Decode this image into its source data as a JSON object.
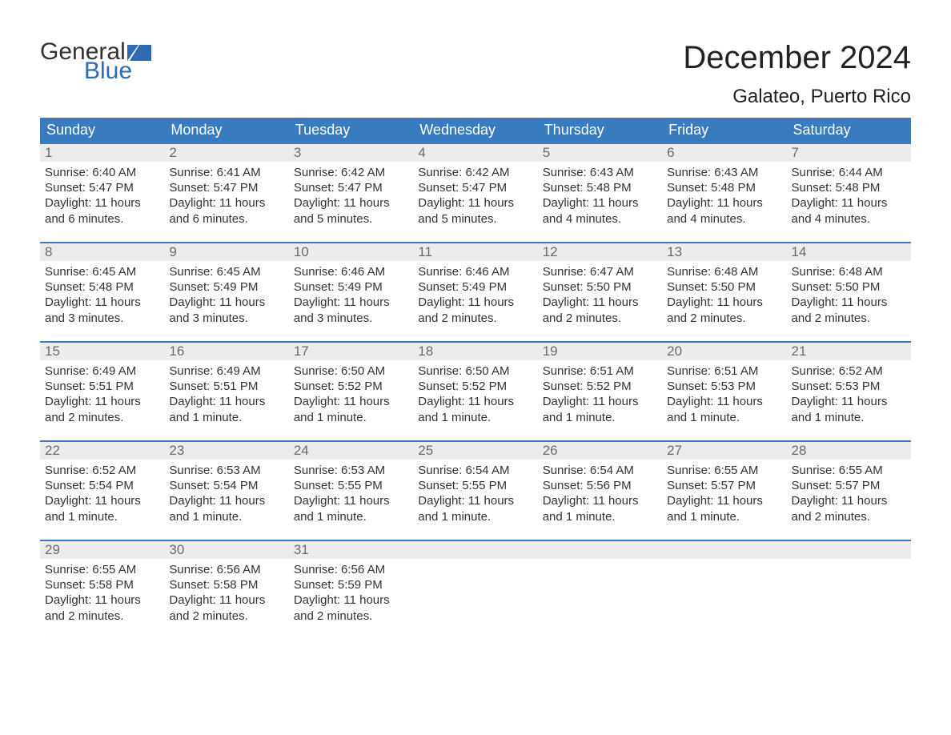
{
  "logo": {
    "word1": "General",
    "word2": "Blue",
    "flag_color": "#2f6bb1"
  },
  "title": "December 2024",
  "location": "Galateo, Puerto Rico",
  "colors": {
    "header_bg": "#387bbf",
    "header_text": "#ffffff",
    "daynum_bg": "#ececec",
    "daynum_text": "#6a6a6a",
    "body_text": "#333333",
    "row_border": "#387bbf",
    "page_bg": "#ffffff"
  },
  "typography": {
    "title_fontsize": 40,
    "location_fontsize": 24,
    "header_fontsize": 18,
    "daynum_fontsize": 17,
    "cell_fontsize": 15
  },
  "weekdays": [
    "Sunday",
    "Monday",
    "Tuesday",
    "Wednesday",
    "Thursday",
    "Friday",
    "Saturday"
  ],
  "weeks": [
    [
      {
        "num": "1",
        "sunrise": "Sunrise: 6:40 AM",
        "sunset": "Sunset: 5:47 PM",
        "daylight": "Daylight: 11 hours and 6 minutes."
      },
      {
        "num": "2",
        "sunrise": "Sunrise: 6:41 AM",
        "sunset": "Sunset: 5:47 PM",
        "daylight": "Daylight: 11 hours and 6 minutes."
      },
      {
        "num": "3",
        "sunrise": "Sunrise: 6:42 AM",
        "sunset": "Sunset: 5:47 PM",
        "daylight": "Daylight: 11 hours and 5 minutes."
      },
      {
        "num": "4",
        "sunrise": "Sunrise: 6:42 AM",
        "sunset": "Sunset: 5:47 PM",
        "daylight": "Daylight: 11 hours and 5 minutes."
      },
      {
        "num": "5",
        "sunrise": "Sunrise: 6:43 AM",
        "sunset": "Sunset: 5:48 PM",
        "daylight": "Daylight: 11 hours and 4 minutes."
      },
      {
        "num": "6",
        "sunrise": "Sunrise: 6:43 AM",
        "sunset": "Sunset: 5:48 PM",
        "daylight": "Daylight: 11 hours and 4 minutes."
      },
      {
        "num": "7",
        "sunrise": "Sunrise: 6:44 AM",
        "sunset": "Sunset: 5:48 PM",
        "daylight": "Daylight: 11 hours and 4 minutes."
      }
    ],
    [
      {
        "num": "8",
        "sunrise": "Sunrise: 6:45 AM",
        "sunset": "Sunset: 5:48 PM",
        "daylight": "Daylight: 11 hours and 3 minutes."
      },
      {
        "num": "9",
        "sunrise": "Sunrise: 6:45 AM",
        "sunset": "Sunset: 5:49 PM",
        "daylight": "Daylight: 11 hours and 3 minutes."
      },
      {
        "num": "10",
        "sunrise": "Sunrise: 6:46 AM",
        "sunset": "Sunset: 5:49 PM",
        "daylight": "Daylight: 11 hours and 3 minutes."
      },
      {
        "num": "11",
        "sunrise": "Sunrise: 6:46 AM",
        "sunset": "Sunset: 5:49 PM",
        "daylight": "Daylight: 11 hours and 2 minutes."
      },
      {
        "num": "12",
        "sunrise": "Sunrise: 6:47 AM",
        "sunset": "Sunset: 5:50 PM",
        "daylight": "Daylight: 11 hours and 2 minutes."
      },
      {
        "num": "13",
        "sunrise": "Sunrise: 6:48 AM",
        "sunset": "Sunset: 5:50 PM",
        "daylight": "Daylight: 11 hours and 2 minutes."
      },
      {
        "num": "14",
        "sunrise": "Sunrise: 6:48 AM",
        "sunset": "Sunset: 5:50 PM",
        "daylight": "Daylight: 11 hours and 2 minutes."
      }
    ],
    [
      {
        "num": "15",
        "sunrise": "Sunrise: 6:49 AM",
        "sunset": "Sunset: 5:51 PM",
        "daylight": "Daylight: 11 hours and 2 minutes."
      },
      {
        "num": "16",
        "sunrise": "Sunrise: 6:49 AM",
        "sunset": "Sunset: 5:51 PM",
        "daylight": "Daylight: 11 hours and 1 minute."
      },
      {
        "num": "17",
        "sunrise": "Sunrise: 6:50 AM",
        "sunset": "Sunset: 5:52 PM",
        "daylight": "Daylight: 11 hours and 1 minute."
      },
      {
        "num": "18",
        "sunrise": "Sunrise: 6:50 AM",
        "sunset": "Sunset: 5:52 PM",
        "daylight": "Daylight: 11 hours and 1 minute."
      },
      {
        "num": "19",
        "sunrise": "Sunrise: 6:51 AM",
        "sunset": "Sunset: 5:52 PM",
        "daylight": "Daylight: 11 hours and 1 minute."
      },
      {
        "num": "20",
        "sunrise": "Sunrise: 6:51 AM",
        "sunset": "Sunset: 5:53 PM",
        "daylight": "Daylight: 11 hours and 1 minute."
      },
      {
        "num": "21",
        "sunrise": "Sunrise: 6:52 AM",
        "sunset": "Sunset: 5:53 PM",
        "daylight": "Daylight: 11 hours and 1 minute."
      }
    ],
    [
      {
        "num": "22",
        "sunrise": "Sunrise: 6:52 AM",
        "sunset": "Sunset: 5:54 PM",
        "daylight": "Daylight: 11 hours and 1 minute."
      },
      {
        "num": "23",
        "sunrise": "Sunrise: 6:53 AM",
        "sunset": "Sunset: 5:54 PM",
        "daylight": "Daylight: 11 hours and 1 minute."
      },
      {
        "num": "24",
        "sunrise": "Sunrise: 6:53 AM",
        "sunset": "Sunset: 5:55 PM",
        "daylight": "Daylight: 11 hours and 1 minute."
      },
      {
        "num": "25",
        "sunrise": "Sunrise: 6:54 AM",
        "sunset": "Sunset: 5:55 PM",
        "daylight": "Daylight: 11 hours and 1 minute."
      },
      {
        "num": "26",
        "sunrise": "Sunrise: 6:54 AM",
        "sunset": "Sunset: 5:56 PM",
        "daylight": "Daylight: 11 hours and 1 minute."
      },
      {
        "num": "27",
        "sunrise": "Sunrise: 6:55 AM",
        "sunset": "Sunset: 5:57 PM",
        "daylight": "Daylight: 11 hours and 1 minute."
      },
      {
        "num": "28",
        "sunrise": "Sunrise: 6:55 AM",
        "sunset": "Sunset: 5:57 PM",
        "daylight": "Daylight: 11 hours and 2 minutes."
      }
    ],
    [
      {
        "num": "29",
        "sunrise": "Sunrise: 6:55 AM",
        "sunset": "Sunset: 5:58 PM",
        "daylight": "Daylight: 11 hours and 2 minutes."
      },
      {
        "num": "30",
        "sunrise": "Sunrise: 6:56 AM",
        "sunset": "Sunset: 5:58 PM",
        "daylight": "Daylight: 11 hours and 2 minutes."
      },
      {
        "num": "31",
        "sunrise": "Sunrise: 6:56 AM",
        "sunset": "Sunset: 5:59 PM",
        "daylight": "Daylight: 11 hours and 2 minutes."
      },
      null,
      null,
      null,
      null
    ]
  ]
}
